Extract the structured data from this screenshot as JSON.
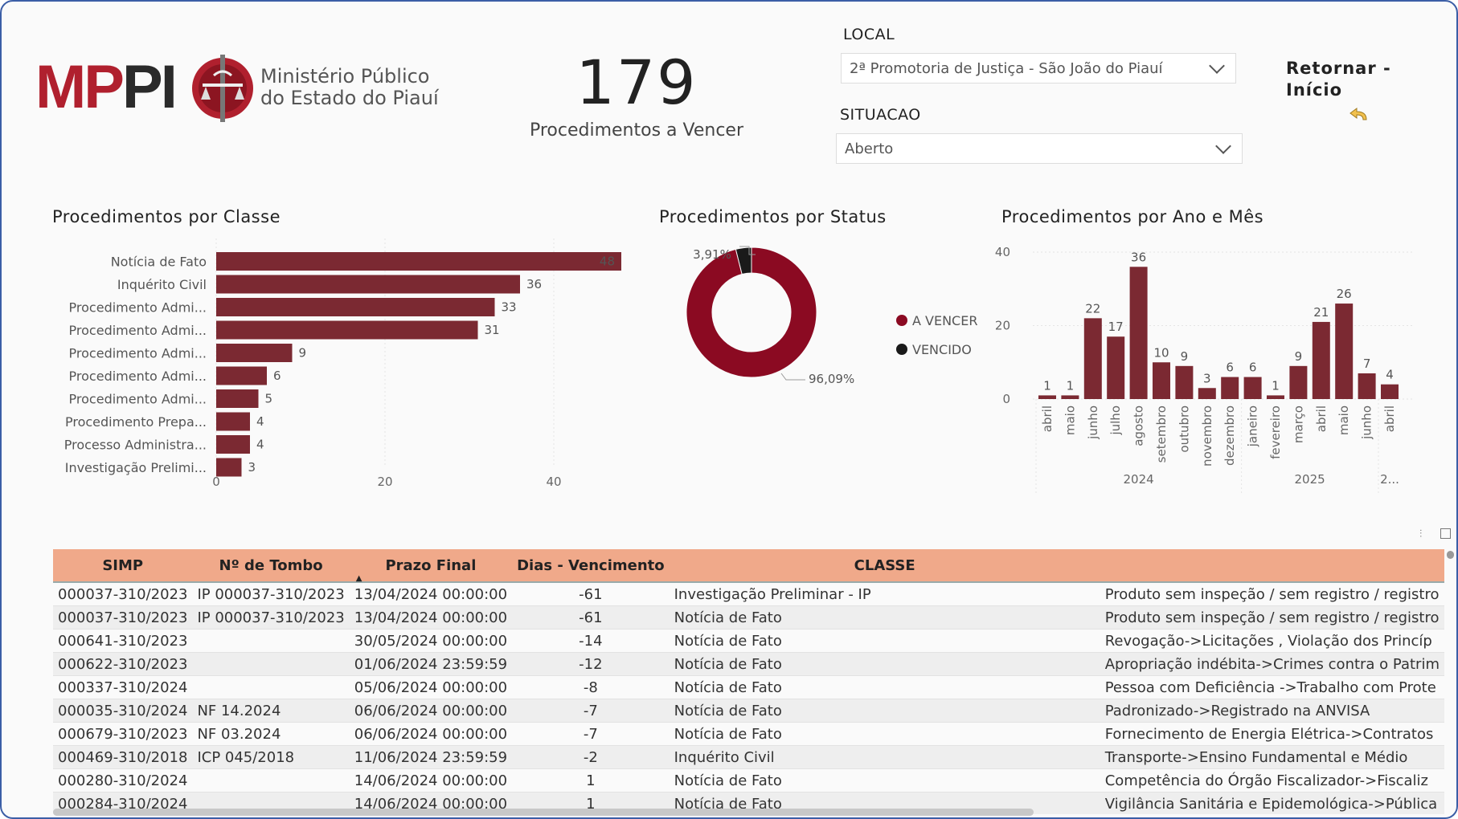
{
  "header": {
    "logo_letters_red": "MP",
    "logo_letters_dark": "PI",
    "org_line1": "Ministério Público",
    "org_line2": "do Estado do Piauí"
  },
  "kpi": {
    "value": "179",
    "label": "Procedimentos a Vencer"
  },
  "filters": {
    "local_label": "LOCAL",
    "local_value": "2ª Promotoria de Justiça - São João do Piauí",
    "situacao_label": "SITUACAO",
    "situacao_value": "Aberto"
  },
  "nav": {
    "return_line1": "Retornar -",
    "return_line2": "Início"
  },
  "colors": {
    "bar": "#7b2932",
    "donut_main": "#8b0a22",
    "donut_small": "#1a1a1a",
    "table_header": "#f0a98a"
  },
  "chart_data": [
    {
      "type": "bar",
      "orientation": "horizontal",
      "title": "Procedimentos por Classe",
      "categories": [
        "Notícia de Fato",
        "Inquérito Civil",
        "Procedimento Admi...",
        "Procedimento Admi...",
        "Procedimento Admi...",
        "Procedimento Admi...",
        "Procedimento Admi...",
        "Procedimento Prepa...",
        "Processo Administra...",
        "Investigação Prelimi..."
      ],
      "values": [
        48,
        36,
        33,
        31,
        9,
        6,
        5,
        4,
        4,
        3
      ],
      "xticks": [
        "0",
        "20",
        "40"
      ],
      "xlim": [
        0,
        48
      ],
      "grid": true
    },
    {
      "type": "pie",
      "style": "donut",
      "title": "Procedimentos por Status",
      "labels": [
        "A VENCER",
        "VENCIDO"
      ],
      "values": [
        96.09,
        3.91
      ],
      "value_labels": [
        "96,09%",
        "3,91%"
      ],
      "legend": "right"
    },
    {
      "type": "bar",
      "title": "Procedimentos por Ano e Mês",
      "categories": [
        "abril",
        "maio",
        "junho",
        "julho",
        "agosto",
        "setembro",
        "outubro",
        "novembro",
        "dezembro",
        "janeiro",
        "fevereiro",
        "março",
        "abril",
        "maio",
        "junho",
        "abril"
      ],
      "values": [
        1,
        1,
        22,
        17,
        36,
        10,
        9,
        3,
        6,
        6,
        1,
        9,
        21,
        26,
        7,
        4
      ],
      "year_groups": [
        {
          "label": "2024",
          "from": 0,
          "to": 8
        },
        {
          "label": "2025",
          "from": 9,
          "to": 14
        },
        {
          "label": "2...",
          "from": 15,
          "to": 15
        }
      ],
      "yticks": [
        "0",
        "20",
        "40"
      ],
      "ylim": [
        0,
        40
      ],
      "grid": true
    }
  ],
  "table": {
    "columns": [
      "SIMP",
      "Nº de Tombo",
      "Prazo Final",
      "Dias - Vencimento",
      "CLASSE",
      ""
    ],
    "sort_indicator": "▲",
    "rows": [
      [
        "000037-310/2023",
        "IP 000037-310/2023",
        "13/04/2024 00:00:00",
        "-61",
        "Investigação Preliminar - IP",
        "Produto sem inspeção / sem registro / registro"
      ],
      [
        "000037-310/2023",
        "IP 000037-310/2023",
        "13/04/2024 00:00:00",
        "-61",
        "Notícia de Fato",
        "Produto sem inspeção / sem registro / registro"
      ],
      [
        "000641-310/2023",
        "",
        "30/05/2024 00:00:00",
        "-14",
        "Notícia de Fato",
        "Revogação->Licitações , Violação dos Princíp"
      ],
      [
        "000622-310/2023",
        "",
        "01/06/2024 23:59:59",
        "-12",
        "Notícia de Fato",
        "Apropriação indébita->Crimes contra o Patrim"
      ],
      [
        "000337-310/2024",
        "",
        "05/06/2024 00:00:00",
        "-8",
        "Notícia de Fato",
        "Pessoa com Deficiência ->Trabalho com Prote"
      ],
      [
        "000035-310/2024",
        "NF 14.2024",
        "06/06/2024 00:00:00",
        "-7",
        "Notícia de Fato",
        "Padronizado->Registrado na ANVISA"
      ],
      [
        "000679-310/2023",
        "NF 03.2024",
        "06/06/2024 00:00:00",
        "-7",
        "Notícia de Fato",
        "Fornecimento de Energia Elétrica->Contratos"
      ],
      [
        "000469-310/2018",
        "ICP 045/2018",
        "11/06/2024 23:59:59",
        "-2",
        "Inquérito Civil",
        "Transporte->Ensino Fundamental e Médio"
      ],
      [
        "000280-310/2024",
        "",
        "14/06/2024 00:00:00",
        "1",
        "Notícia de Fato",
        "Competência do Órgão Fiscalizador->Fiscaliz"
      ],
      [
        "000284-310/2024",
        "",
        "14/06/2024 00:00:00",
        "1",
        "Notícia de Fato",
        "Vigilância Sanitária e Epidemológica->Pública"
      ]
    ]
  }
}
